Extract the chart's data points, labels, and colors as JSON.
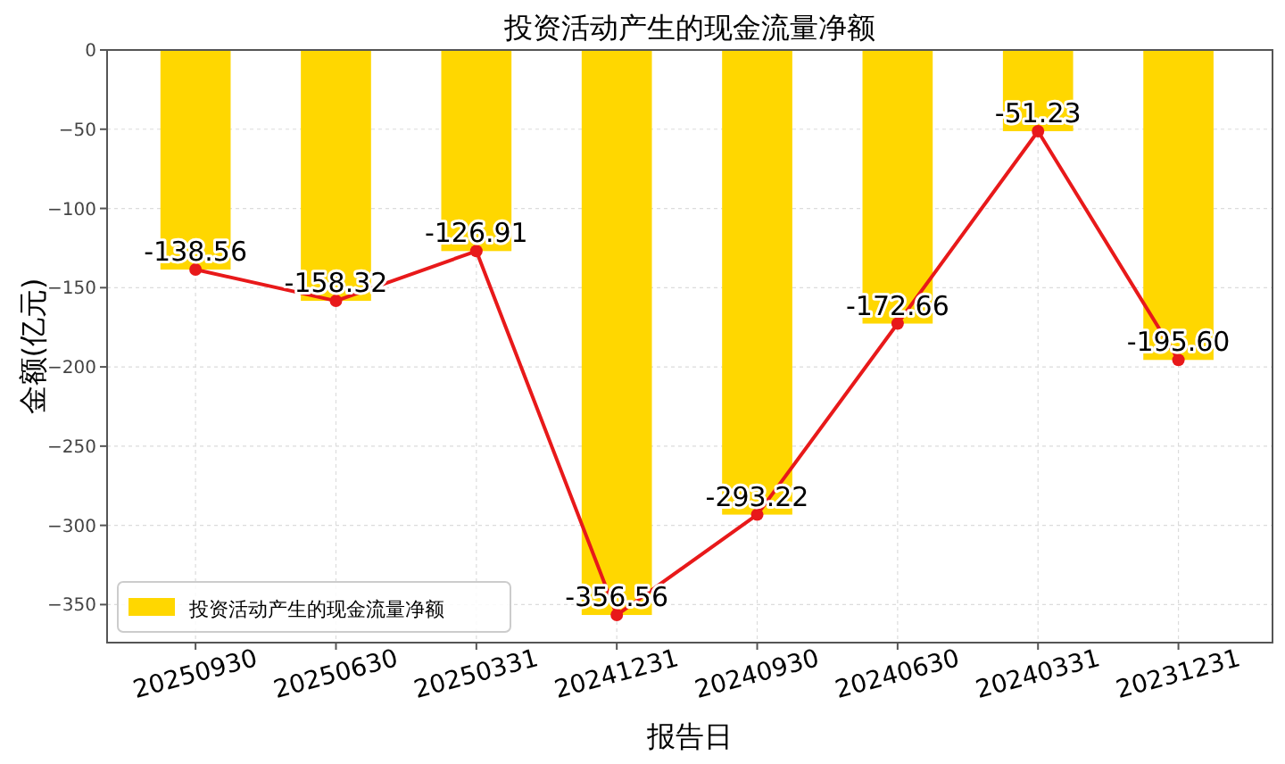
{
  "chart_data": {
    "type": "bar",
    "title": "投资活动产生的现金流量净额",
    "xlabel": "报告日",
    "ylabel": "金额(亿元)",
    "categories": [
      "20250930",
      "20250630",
      "20250331",
      "20241231",
      "20240930",
      "20240630",
      "20240331",
      "20231231"
    ],
    "ylim": [
      -374,
      0
    ],
    "yticks": [
      0,
      -50,
      -100,
      -150,
      -200,
      -250,
      -300,
      -350
    ],
    "grid": true,
    "legend": "bottom left",
    "series": [
      {
        "name": "投资活动产生的现金流量净额",
        "color": "#ffd700",
        "values": [
          -138.56,
          -158.32,
          -126.91,
          -356.56,
          -293.22,
          -172.66,
          -51.23,
          -195.6
        ]
      },
      {
        "type": "line",
        "color": "#e8191a",
        "marker": "circle",
        "values": [
          -138.56,
          -158.32,
          -126.91,
          -356.56,
          -293.22,
          -172.66,
          -51.23,
          -195.6
        ],
        "value_labels": [
          "-138.56",
          "-158.32",
          "-126.91",
          "-356.56",
          "-293.22",
          "-172.66",
          "-51.23",
          "-195.60"
        ]
      }
    ]
  }
}
